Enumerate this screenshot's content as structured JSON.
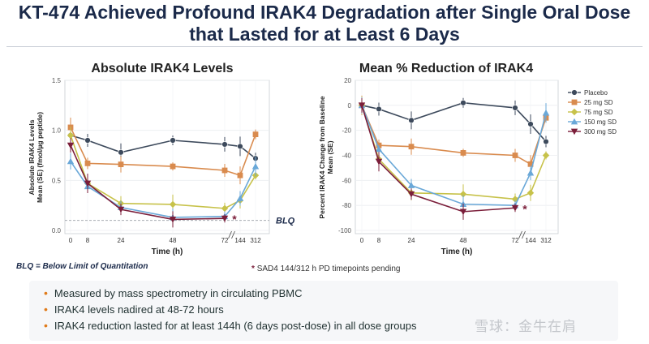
{
  "title_line1": "KT-474 Achieved Profound IRAK4 Degradation after Single Oral Dose",
  "title_line2": "that Lasted for at Least 6 Days",
  "legend": {
    "items": [
      {
        "name": "Placebo",
        "color": "#3d4a5c",
        "marker": "circle"
      },
      {
        "name": "25 mg SD",
        "color": "#d98b4e",
        "marker": "square"
      },
      {
        "name": "75 mg SD",
        "color": "#c7c24a",
        "marker": "diamond"
      },
      {
        "name": "150 mg SD",
        "color": "#6aa8d8",
        "marker": "triangle"
      },
      {
        "name": "300 mg SD",
        "color": "#7b1e3a",
        "marker": "triangle-down"
      }
    ]
  },
  "chart_data": [
    {
      "type": "line",
      "title": "Absolute IRAK4 Levels",
      "xlabel": "Time (h)",
      "ylabel": "Absolute IRAK4 Levels Mean (SE) (fmol/µg peptide)",
      "x": [
        0,
        8,
        24,
        48,
        72,
        144,
        312
      ],
      "xticks": [
        "0",
        "8",
        "24",
        "48",
        "72",
        "144",
        "312"
      ],
      "yticks": [
        "0.0",
        "0.5",
        "1.0",
        "1.5"
      ],
      "ylim": [
        0,
        1.5
      ],
      "axis_break": "72-144",
      "reference_line": {
        "label": "BLQ",
        "value": 0.1
      },
      "annotation": {
        "text": "*",
        "x": 72
      },
      "series": [
        {
          "name": "Placebo",
          "values": [
            0.95,
            0.9,
            0.78,
            0.9,
            0.86,
            0.84,
            0.72
          ]
        },
        {
          "name": "25 mg SD",
          "values": [
            1.03,
            0.67,
            0.66,
            0.64,
            0.6,
            0.55,
            0.96
          ]
        },
        {
          "name": "75 mg SD",
          "values": [
            0.95,
            0.47,
            0.27,
            0.26,
            0.22,
            0.3,
            0.55
          ]
        },
        {
          "name": "150 mg SD",
          "values": [
            0.69,
            0.44,
            0.23,
            0.13,
            0.14,
            0.32,
            0.64
          ]
        },
        {
          "name": "300 mg SD",
          "values": [
            0.85,
            0.47,
            0.21,
            0.11,
            0.12,
            null,
            null
          ]
        }
      ]
    },
    {
      "type": "line",
      "title": "Mean % Reduction of IRAK4",
      "xlabel": "Time (h)",
      "ylabel": "Percent IRAK4 Change from Baseline Mean (SE)",
      "x": [
        0,
        8,
        24,
        48,
        72,
        144,
        312
      ],
      "xticks": [
        "0",
        "8",
        "24",
        "48",
        "72",
        "144",
        "312"
      ],
      "yticks": [
        "20",
        "0",
        "-20",
        "-40",
        "-60",
        "-80",
        "-100"
      ],
      "ylim": [
        -100,
        20
      ],
      "axis_break": "72-144",
      "annotation": {
        "text": "*",
        "x": 72
      },
      "series": [
        {
          "name": "Placebo",
          "values": [
            0,
            -3,
            -12,
            2,
            -2,
            -15,
            -29
          ]
        },
        {
          "name": "25 mg SD",
          "values": [
            0,
            -32,
            -33,
            -38,
            -40,
            -47,
            -10
          ]
        },
        {
          "name": "75 mg SD",
          "values": [
            0,
            -43,
            -70,
            -71,
            -75,
            -70,
            -40
          ]
        },
        {
          "name": "150 mg SD",
          "values": [
            0,
            -35,
            -64,
            -79,
            -80,
            -54,
            -6
          ]
        },
        {
          "name": "300 mg SD",
          "values": [
            0,
            -45,
            -71,
            -85,
            -82,
            null,
            null
          ]
        }
      ]
    }
  ],
  "notes": {
    "blq": "BLQ = Below Limit of Quantitation",
    "star_symbol": "*",
    "pending": "SAD4 144/312 h PD timepoints pending"
  },
  "bullets": [
    "Measured by mass spectrometry in circulating PBMC",
    "IRAK4 levels nadired at 48-72 hours",
    "IRAK4 reduction lasted for at least 144h (6 days post-dose) in all dose groups"
  ],
  "watermark": "雪球：金牛在肩"
}
